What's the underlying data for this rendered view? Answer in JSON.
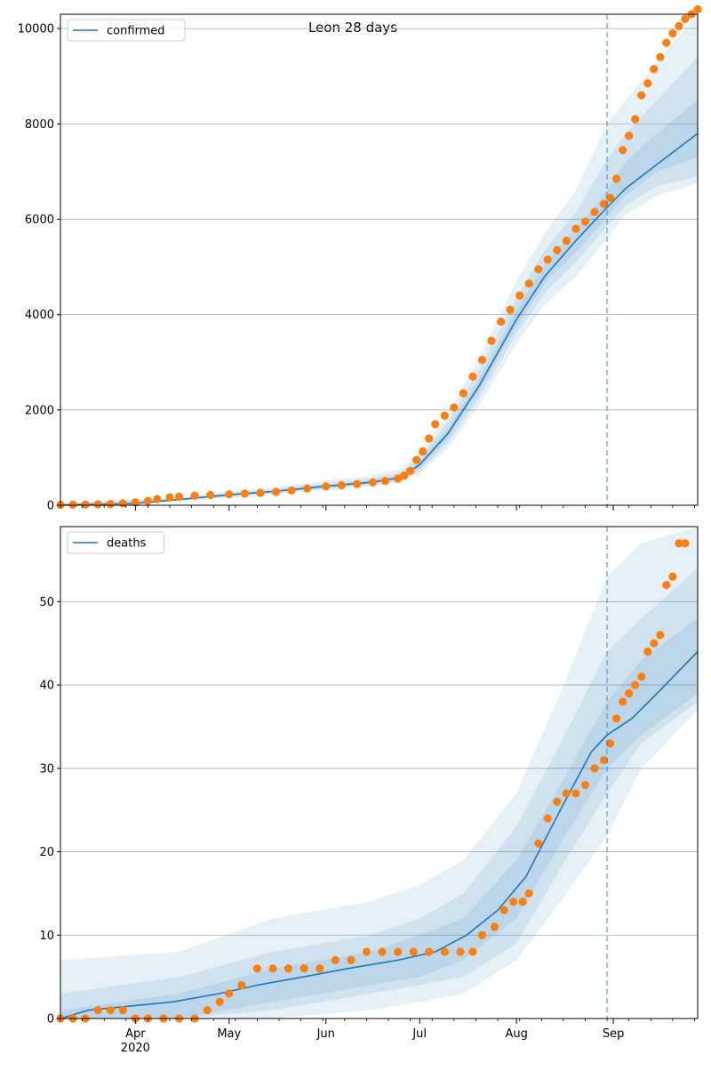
{
  "title": "Leon 28 days",
  "x_axis": {
    "month_ticks": [
      "Apr",
      "May",
      "Jun",
      "Jul",
      "Aug",
      "Sep"
    ],
    "year_label": "2020",
    "xlim": [
      "2020-03-08",
      "2020-09-28"
    ]
  },
  "forecast_start_date": "2020-08-30",
  "colors": {
    "model": "#1f77b4",
    "observed": "#ff7f0e",
    "band": "#1f77b4",
    "grid": "#b0b0b0"
  },
  "chart_data": [
    {
      "type": "line",
      "panel": "top",
      "legend": "confirmed",
      "legend_position": "top-left",
      "grid": "horizontal",
      "ylim": [
        0,
        10300
      ],
      "yticks": [
        0,
        2000,
        4000,
        6000,
        8000,
        10000
      ],
      "model_line": {
        "x": [
          "2020-03-08",
          "2020-03-22",
          "2020-04-01",
          "2020-04-15",
          "2020-05-01",
          "2020-05-15",
          "2020-06-01",
          "2020-06-15",
          "2020-06-25",
          "2020-07-01",
          "2020-07-10",
          "2020-07-20",
          "2020-08-01",
          "2020-08-10",
          "2020-08-20",
          "2020-08-30",
          "2020-09-05",
          "2020-09-15",
          "2020-09-28"
        ],
        "y": [
          10,
          20,
          40,
          120,
          220,
          290,
          400,
          480,
          580,
          850,
          1500,
          2500,
          3900,
          4800,
          5550,
          6250,
          6650,
          7150,
          7800
        ]
      },
      "bands": {
        "x": [
          "2020-03-08",
          "2020-04-15",
          "2020-05-15",
          "2020-06-15",
          "2020-06-25",
          "2020-07-01",
          "2020-07-10",
          "2020-07-20",
          "2020-08-01",
          "2020-08-10",
          "2020-08-20",
          "2020-08-30",
          "2020-09-05",
          "2020-09-15",
          "2020-09-28"
        ],
        "outer_low": [
          0,
          80,
          230,
          390,
          470,
          650,
          1200,
          2100,
          3400,
          4200,
          4800,
          5600,
          6100,
          6500,
          6750
        ],
        "outer_high": [
          40,
          180,
          380,
          620,
          760,
          1100,
          1900,
          3100,
          4700,
          5700,
          6600,
          8000,
          8500,
          9300,
          10300
        ],
        "mid_low": [
          0,
          100,
          250,
          420,
          510,
          720,
          1300,
          2250,
          3600,
          4450,
          5100,
          5850,
          6300,
          6700,
          6900
        ],
        "mid_high": [
          25,
          150,
          340,
          560,
          690,
          1000,
          1750,
          2850,
          4350,
          5350,
          6150,
          7250,
          7800,
          8500,
          9400
        ],
        "inner_low": [
          0,
          110,
          270,
          450,
          550,
          780,
          1400,
          2400,
          3750,
          4650,
          5300,
          6050,
          6500,
          7000,
          7300
        ],
        "inner_high": [
          15,
          130,
          310,
          520,
          630,
          920,
          1600,
          2650,
          4100,
          5050,
          5800,
          6600,
          7200,
          7800,
          8500
        ]
      },
      "observed": {
        "x": [
          "2020-03-08",
          "2020-03-12",
          "2020-03-16",
          "2020-03-20",
          "2020-03-24",
          "2020-03-28",
          "2020-04-01",
          "2020-04-05",
          "2020-04-08",
          "2020-04-12",
          "2020-04-15",
          "2020-04-20",
          "2020-04-25",
          "2020-05-01",
          "2020-05-06",
          "2020-05-11",
          "2020-05-16",
          "2020-05-21",
          "2020-05-26",
          "2020-06-01",
          "2020-06-06",
          "2020-06-11",
          "2020-06-16",
          "2020-06-20",
          "2020-06-24",
          "2020-06-26",
          "2020-06-28",
          "2020-06-30",
          "2020-07-02",
          "2020-07-04",
          "2020-07-06",
          "2020-07-09",
          "2020-07-12",
          "2020-07-15",
          "2020-07-18",
          "2020-07-21",
          "2020-07-24",
          "2020-07-27",
          "2020-07-30",
          "2020-08-02",
          "2020-08-05",
          "2020-08-08",
          "2020-08-11",
          "2020-08-14",
          "2020-08-17",
          "2020-08-20",
          "2020-08-23",
          "2020-08-26",
          "2020-08-29",
          "2020-08-31",
          "2020-09-02",
          "2020-09-04",
          "2020-09-06",
          "2020-09-08",
          "2020-09-10",
          "2020-09-12",
          "2020-09-14",
          "2020-09-16",
          "2020-09-18",
          "2020-09-20",
          "2020-09-22",
          "2020-09-24",
          "2020-09-26",
          "2020-09-28"
        ],
        "y": [
          10,
          12,
          15,
          18,
          25,
          40,
          60,
          90,
          130,
          165,
          180,
          200,
          215,
          230,
          245,
          260,
          280,
          310,
          350,
          395,
          420,
          445,
          480,
          510,
          560,
          620,
          720,
          950,
          1130,
          1400,
          1700,
          1880,
          2050,
          2350,
          2700,
          3050,
          3450,
          3850,
          4100,
          4400,
          4650,
          4950,
          5150,
          5350,
          5550,
          5800,
          5950,
          6150,
          6320,
          6450,
          6850,
          7450,
          7750,
          8100,
          8600,
          8850,
          9150,
          9400,
          9700,
          9900,
          10050,
          10200,
          10300,
          10400
        ]
      }
    },
    {
      "type": "line",
      "panel": "bottom",
      "legend": "deaths",
      "legend_position": "top-left",
      "grid": "horizontal",
      "ylim": [
        0,
        59
      ],
      "yticks": [
        0,
        10,
        20,
        30,
        40,
        50
      ],
      "model_line": {
        "x": [
          "2020-03-08",
          "2020-03-17",
          "2020-04-13",
          "2020-04-28",
          "2020-05-10",
          "2020-05-25",
          "2020-06-08",
          "2020-06-24",
          "2020-07-06",
          "2020-07-16",
          "2020-07-26",
          "2020-08-04",
          "2020-08-15",
          "2020-08-25",
          "2020-08-30",
          "2020-09-07",
          "2020-09-15",
          "2020-09-28"
        ],
        "y": [
          0,
          1,
          2,
          3,
          4,
          5,
          6,
          7,
          8,
          10,
          13,
          17,
          25,
          32,
          34,
          36,
          39,
          44
        ]
      },
      "bands": {
        "x": [
          "2020-03-08",
          "2020-04-15",
          "2020-05-15",
          "2020-06-15",
          "2020-07-01",
          "2020-07-15",
          "2020-08-01",
          "2020-08-15",
          "2020-08-30",
          "2020-09-10",
          "2020-09-28"
        ],
        "outer_low": [
          0,
          0,
          0,
          1,
          2,
          3,
          7,
          14,
          22,
          30,
          37
        ],
        "outer_high": [
          7,
          8,
          12,
          14,
          16,
          19,
          27,
          39,
          53,
          57,
          59
        ],
        "mid_low": [
          0,
          0,
          1,
          3,
          4,
          5,
          9,
          18,
          27,
          33,
          38
        ],
        "mid_high": [
          3,
          5,
          8,
          10,
          12,
          15,
          23,
          33,
          44,
          48,
          54
        ],
        "inner_low": [
          0,
          0,
          2,
          4,
          5,
          7,
          12,
          21,
          30,
          34,
          39
        ],
        "inner_high": [
          1,
          3,
          6,
          8,
          10,
          12,
          19,
          28,
          38,
          43,
          48
        ]
      },
      "observed": {
        "x": [
          "2020-03-08",
          "2020-03-12",
          "2020-03-16",
          "2020-03-20",
          "2020-03-24",
          "2020-03-28",
          "2020-04-01",
          "2020-04-05",
          "2020-04-10",
          "2020-04-15",
          "2020-04-20",
          "2020-04-24",
          "2020-04-28",
          "2020-05-01",
          "2020-05-05",
          "2020-05-10",
          "2020-05-15",
          "2020-05-20",
          "2020-05-25",
          "2020-05-30",
          "2020-06-04",
          "2020-06-09",
          "2020-06-14",
          "2020-06-19",
          "2020-06-24",
          "2020-06-29",
          "2020-07-04",
          "2020-07-09",
          "2020-07-14",
          "2020-07-18",
          "2020-07-21",
          "2020-07-25",
          "2020-07-28",
          "2020-07-31",
          "2020-08-03",
          "2020-08-05",
          "2020-08-08",
          "2020-08-11",
          "2020-08-14",
          "2020-08-17",
          "2020-08-20",
          "2020-08-23",
          "2020-08-26",
          "2020-08-29",
          "2020-08-31",
          "2020-09-02",
          "2020-09-04",
          "2020-09-06",
          "2020-09-08",
          "2020-09-10",
          "2020-09-12",
          "2020-09-14",
          "2020-09-16",
          "2020-09-18",
          "2020-09-20",
          "2020-09-22",
          "2020-09-24"
        ],
        "y": [
          0,
          0,
          0,
          1,
          1,
          1,
          0,
          0,
          0,
          0,
          0,
          1,
          2,
          3,
          4,
          6,
          6,
          6,
          6,
          6,
          7,
          7,
          8,
          8,
          8,
          8,
          8,
          8,
          8,
          8,
          10,
          11,
          13,
          14,
          14,
          15,
          21,
          24,
          26,
          27,
          27,
          28,
          30,
          31,
          33,
          36,
          38,
          39,
          40,
          41,
          44,
          45,
          46,
          52,
          53,
          57,
          57
        ]
      }
    }
  ]
}
